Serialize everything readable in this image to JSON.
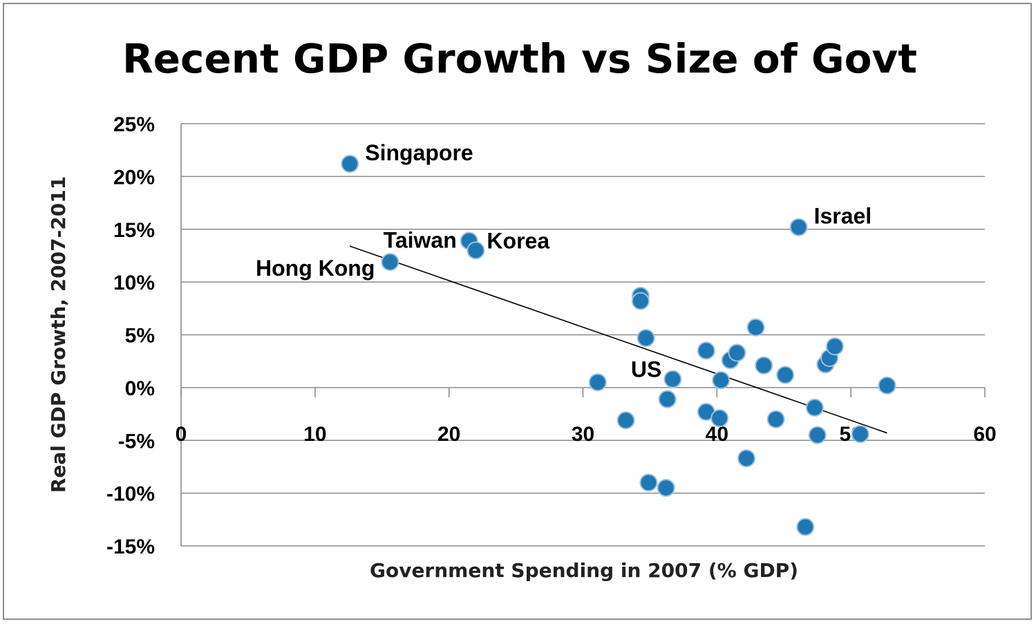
{
  "chart_data": {
    "type": "scatter",
    "title": "Recent GDP Growth vs Size of Govt",
    "xlabel": "Government Spending in 2007 (% GDP)",
    "ylabel": "Real GDP Growth, 2007-2011",
    "xlim": [
      0,
      60
    ],
    "ylim": [
      -15,
      25
    ],
    "x_ticks": [
      "0",
      "10",
      "20",
      "30",
      "40",
      "50",
      "60"
    ],
    "y_ticks": [
      "25%",
      "20%",
      "15%",
      "10%",
      "5%",
      "0%",
      "-5%",
      "-10%",
      "-15%"
    ],
    "grid": "horizontal",
    "series": [
      {
        "points": [
          {
            "x": 12.6,
            "y": 21.2,
            "label": "Singapore"
          },
          {
            "x": 15.6,
            "y": 11.9,
            "label": "Hong Kong"
          },
          {
            "x": 21.5,
            "y": 13.9,
            "label": "Taiwan"
          },
          {
            "x": 22.0,
            "y": 13.0,
            "label": "Korea"
          },
          {
            "x": 46.1,
            "y": 15.2,
            "label": "Israel"
          },
          {
            "x": 36.7,
            "y": 0.8,
            "label": "US"
          },
          {
            "x": 31.1,
            "y": 0.5
          },
          {
            "x": 33.2,
            "y": -3.1
          },
          {
            "x": 34.3,
            "y": 8.7
          },
          {
            "x": 34.3,
            "y": 8.2
          },
          {
            "x": 34.7,
            "y": 4.7
          },
          {
            "x": 34.9,
            "y": -9.0
          },
          {
            "x": 36.2,
            "y": -9.5
          },
          {
            "x": 36.3,
            "y": -1.1
          },
          {
            "x": 39.2,
            "y": 3.5
          },
          {
            "x": 39.2,
            "y": -2.3
          },
          {
            "x": 40.2,
            "y": -2.9
          },
          {
            "x": 40.3,
            "y": 0.7
          },
          {
            "x": 41.0,
            "y": 2.6
          },
          {
            "x": 41.5,
            "y": 3.3
          },
          {
            "x": 42.2,
            "y": -6.7
          },
          {
            "x": 42.9,
            "y": 5.7
          },
          {
            "x": 43.5,
            "y": 2.1
          },
          {
            "x": 44.4,
            "y": -3.0
          },
          {
            "x": 45.1,
            "y": 1.2
          },
          {
            "x": 46.6,
            "y": -13.2
          },
          {
            "x": 47.3,
            "y": -1.9
          },
          {
            "x": 47.5,
            "y": -4.5
          },
          {
            "x": 48.1,
            "y": 2.2
          },
          {
            "x": 48.4,
            "y": 2.8
          },
          {
            "x": 48.8,
            "y": 3.9
          },
          {
            "x": 50.7,
            "y": -4.4
          },
          {
            "x": 52.7,
            "y": 0.2
          }
        ]
      }
    ],
    "trendline": {
      "x": [
        12.6,
        52.7
      ],
      "y": [
        13.4,
        -4.3
      ]
    }
  }
}
